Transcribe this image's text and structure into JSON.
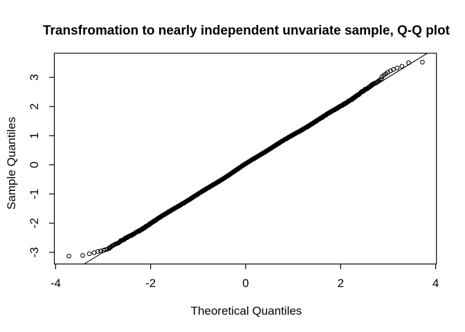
{
  "chart_data": {
    "type": "scatter",
    "subtype": "qq-plot-normal",
    "title": "Transfromation to nearly independent unvariate sample, Q-Q plot",
    "xlabel": "Theoretical Quantiles",
    "ylabel": "Sample Quantiles",
    "x_tick_values": [
      -4,
      -2,
      0,
      2,
      4
    ],
    "x_tick_labels": [
      "-4",
      "-2",
      "0",
      "2",
      "4"
    ],
    "y_tick_values": [
      -3,
      -2,
      -1,
      0,
      1,
      2,
      3
    ],
    "y_tick_labels": [
      "-3",
      "-2",
      "-1",
      "0",
      "1",
      "2",
      "3"
    ],
    "xlim": [
      -4.03,
      4.02
    ],
    "ylim": [
      -3.4,
      3.83
    ],
    "grid": false,
    "legend": null,
    "background_color": "#ffffff",
    "foreground_color": "#000000",
    "marker": {
      "shape": "open-circle",
      "color": "#000000",
      "radius_px": 2.8,
      "stroke_px": 1.1
    },
    "reference_line": {
      "type": "qqline",
      "slope": 1,
      "intercept": 0,
      "color": "#000000"
    },
    "n_points": 5000,
    "bulk_relation": "sample quantiles lie on the y = x line for theoretical quantiles between about -2.8 and 2.8",
    "lower_tail_points": [
      [
        -3.72,
        -3.13
      ],
      [
        -3.43,
        -3.11
      ],
      [
        -3.29,
        -3.05
      ],
      [
        -3.19,
        -3.01
      ],
      [
        -3.11,
        -2.97
      ],
      [
        -3.05,
        -2.95
      ],
      [
        -2.99,
        -2.93
      ],
      [
        -2.95,
        -2.91
      ],
      [
        -2.91,
        -2.89
      ],
      [
        -2.87,
        -2.87
      ]
    ],
    "upper_tail_points": [
      [
        2.87,
        3.02
      ],
      [
        2.91,
        3.07
      ],
      [
        2.95,
        3.12
      ],
      [
        2.99,
        3.17
      ],
      [
        3.05,
        3.22
      ],
      [
        3.11,
        3.27
      ],
      [
        3.19,
        3.32
      ],
      [
        3.29,
        3.38
      ],
      [
        3.43,
        3.5
      ],
      [
        3.72,
        3.52
      ]
    ],
    "point_generation": {
      "seed": 42,
      "noise_amplitude": 0.018,
      "wiggles": [
        [
          1.1,
          0.02,
          0.6
        ],
        [
          3.1,
          0.012,
          0.5
        ],
        [
          7.3,
          0.009,
          1.7
        ]
      ],
      "right_ramp": {
        "start": 2.2,
        "span": 0.7,
        "max": 0.1
      },
      "left_ramp": {
        "start": -2.2,
        "span": 0.7,
        "max": 0.05
      }
    }
  }
}
